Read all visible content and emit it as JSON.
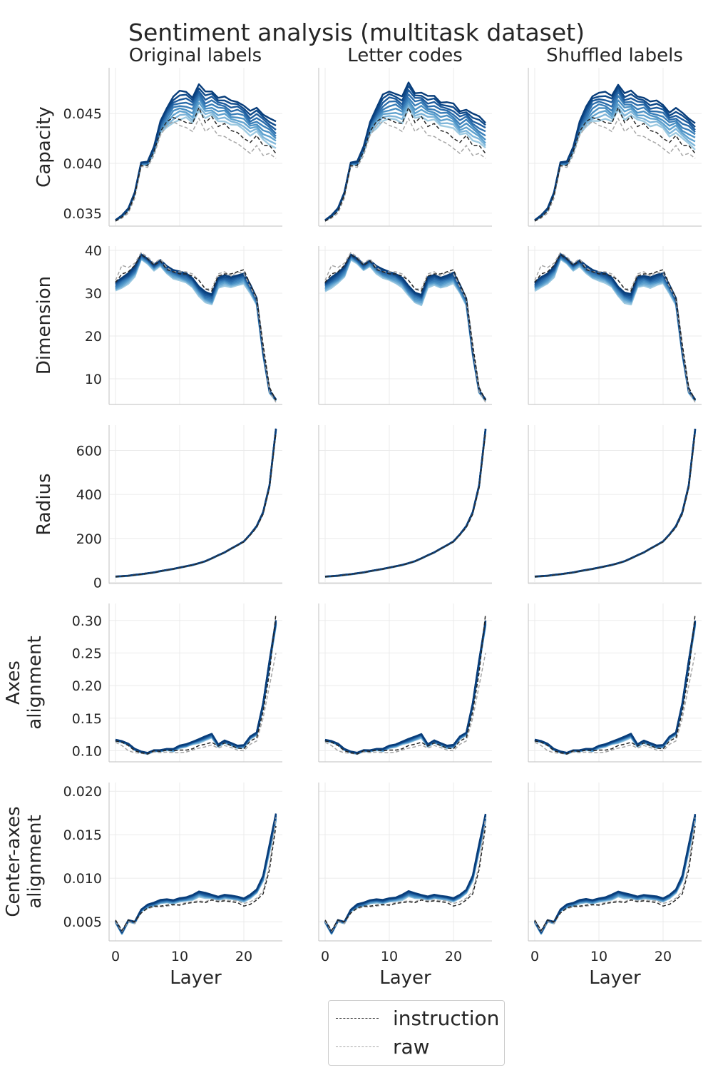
{
  "chart_data": {
    "type": "line",
    "title": "Sentiment analysis (multitask dataset)",
    "columns": [
      "Original labels",
      "Letter codes",
      "Shuffled labels"
    ],
    "xlabel": "Layer",
    "xlim": [
      -1,
      26
    ],
    "xticks": [
      0,
      10,
      20
    ],
    "grid": true,
    "legend_placement": "bottom-center",
    "legend": [
      {
        "name": "instruction",
        "color": "#262626",
        "style": "dashed"
      },
      {
        "name": "raw",
        "color": "#a6a6a6",
        "style": "dashed"
      }
    ],
    "blue_palette": [
      "#9ecae1",
      "#7fb6da",
      "#5fa2cf",
      "#4a90c4",
      "#3a7fb9",
      "#2b6dab",
      "#1d5b9c",
      "#0f4a8a",
      "#083d7a"
    ],
    "x": [
      0,
      1,
      2,
      3,
      4,
      5,
      6,
      7,
      8,
      9,
      10,
      11,
      12,
      13,
      14,
      15,
      16,
      17,
      18,
      19,
      20,
      21,
      22,
      23,
      24,
      25
    ],
    "rows": [
      {
        "ylabel": "Capacity",
        "ylim": [
          0.0337,
          0.0496
        ],
        "yticks": [
          0.035,
          0.04,
          0.045
        ],
        "ytick_labels": [
          "0.035",
          "0.040",
          "0.045"
        ],
        "instruction": [
          0.0342,
          0.0346,
          0.0352,
          0.0368,
          0.0398,
          0.0398,
          0.0412,
          0.0432,
          0.0442,
          0.0446,
          0.0444,
          0.0441,
          0.044,
          0.0456,
          0.0441,
          0.0447,
          0.0437,
          0.044,
          0.0433,
          0.0431,
          0.0425,
          0.0421,
          0.0428,
          0.0418,
          0.0418,
          0.041
        ],
        "raw": [
          0.0342,
          0.0345,
          0.035,
          0.0365,
          0.0397,
          0.0396,
          0.0408,
          0.0428,
          0.0438,
          0.0442,
          0.0438,
          0.0436,
          0.0432,
          0.0445,
          0.0432,
          0.0437,
          0.0428,
          0.0427,
          0.0423,
          0.042,
          0.0415,
          0.041,
          0.0418,
          0.0408,
          0.041,
          0.0405
        ],
        "blue_base": [
          0.0343,
          0.0347,
          0.0354,
          0.037,
          0.04,
          0.04,
          0.0414,
          0.0436,
          0.0446,
          0.0455,
          0.0458,
          0.0458,
          0.0454,
          0.0467,
          0.0458,
          0.046,
          0.0455,
          0.0455,
          0.045,
          0.045,
          0.0447,
          0.044,
          0.0443,
          0.0437,
          0.0433,
          0.0428
        ],
        "blue_spread": [
          0.0,
          0.0001,
          0.0001,
          0.0001,
          0.0001,
          0.0002,
          0.0003,
          0.0006,
          0.001,
          0.0013,
          0.0014,
          0.0013,
          0.0013,
          0.0013,
          0.0013,
          0.0012,
          0.0012,
          0.0012,
          0.0012,
          0.0012,
          0.0012,
          0.0012,
          0.0012,
          0.0013,
          0.0013,
          0.0013
        ]
      },
      {
        "ylabel": "Dimension",
        "ylim": [
          4,
          41
        ],
        "yticks": [
          10,
          20,
          30,
          40
        ],
        "ytick_labels": [
          "10",
          "20",
          "30",
          "40"
        ],
        "instruction": [
          32.5,
          34.5,
          35.0,
          36.5,
          39.0,
          38.0,
          36.5,
          37.5,
          35.5,
          35.0,
          34.5,
          34.5,
          34.0,
          33.0,
          31.0,
          30.5,
          34.0,
          34.5,
          34.5,
          35.0,
          35.5,
          32.0,
          29.0,
          18.0,
          8.0,
          5.0
        ],
        "raw": [
          33.0,
          36.5,
          36.0,
          37.0,
          39.5,
          38.5,
          37.0,
          38.0,
          36.0,
          35.0,
          35.0,
          35.0,
          34.5,
          33.0,
          31.0,
          31.0,
          34.5,
          35.0,
          34.0,
          35.0,
          34.5,
          31.5,
          28.5,
          17.0,
          7.0,
          4.5
        ],
        "blue_base": [
          31.5,
          32.5,
          33.5,
          35.0,
          38.5,
          37.5,
          36.0,
          37.0,
          35.5,
          34.5,
          34.0,
          33.5,
          32.5,
          30.5,
          29.0,
          28.5,
          32.5,
          33.0,
          32.5,
          33.0,
          33.5,
          31.0,
          28.0,
          16.0,
          7.0,
          5.0
        ],
        "blue_spread": [
          1.0,
          1.2,
          1.2,
          1.2,
          0.6,
          0.6,
          0.7,
          0.7,
          0.9,
          1.0,
          1.0,
          1.1,
          1.1,
          1.1,
          1.2,
          1.2,
          1.2,
          1.2,
          1.2,
          1.2,
          1.2,
          1.0,
          0.8,
          0.5,
          0.3,
          0.2
        ]
      },
      {
        "ylabel": "Radius",
        "ylim": [
          -5,
          715
        ],
        "yticks": [
          0,
          200,
          400,
          600
        ],
        "ytick_labels": [
          "0",
          "200",
          "400",
          "600"
        ],
        "instruction": [
          25,
          27,
          29,
          33,
          36,
          40,
          44,
          50,
          55,
          60,
          66,
          72,
          78,
          86,
          95,
          108,
          122,
          135,
          152,
          168,
          184,
          215,
          250,
          310,
          430,
          680
        ],
        "raw": [
          25,
          27,
          29,
          33,
          36,
          40,
          44,
          50,
          55,
          60,
          66,
          72,
          78,
          86,
          95,
          108,
          122,
          135,
          152,
          168,
          184,
          215,
          250,
          310,
          430,
          680
        ],
        "blue_base": [
          26,
          28,
          30,
          34,
          37,
          41,
          45,
          51,
          56,
          61,
          67,
          73,
          79,
          87,
          96,
          109,
          123,
          136,
          153,
          169,
          186,
          218,
          255,
          318,
          440,
          695
        ],
        "blue_spread": [
          1,
          1,
          1,
          1,
          1,
          1,
          1,
          1,
          1,
          1,
          1,
          1,
          1,
          1,
          1,
          1,
          1,
          1,
          1,
          1,
          1,
          1,
          2,
          2,
          3,
          4
        ]
      },
      {
        "ylabel": "Axes\nalignment",
        "ylim": [
          0.083,
          0.326
        ],
        "yticks": [
          0.1,
          0.15,
          0.2,
          0.25,
          0.3
        ],
        "ytick_labels": [
          "0.10",
          "0.15",
          "0.20",
          "0.25",
          "0.30"
        ],
        "instruction": [
          0.115,
          0.113,
          0.108,
          0.1,
          0.097,
          0.095,
          0.1,
          0.099,
          0.101,
          0.1,
          0.101,
          0.101,
          0.103,
          0.108,
          0.11,
          0.113,
          0.107,
          0.112,
          0.108,
          0.104,
          0.103,
          0.115,
          0.12,
          0.16,
          0.22,
          0.31
        ],
        "raw": [
          0.113,
          0.108,
          0.1,
          0.097,
          0.096,
          0.095,
          0.098,
          0.097,
          0.098,
          0.097,
          0.097,
          0.098,
          0.101,
          0.104,
          0.106,
          0.109,
          0.104,
          0.108,
          0.105,
          0.101,
          0.1,
          0.11,
          0.115,
          0.15,
          0.2,
          0.25
        ],
        "blue_base": [
          0.116,
          0.114,
          0.11,
          0.102,
          0.098,
          0.096,
          0.1,
          0.1,
          0.102,
          0.101,
          0.106,
          0.108,
          0.112,
          0.115,
          0.119,
          0.123,
          0.108,
          0.114,
          0.11,
          0.106,
          0.107,
          0.12,
          0.126,
          0.17,
          0.235,
          0.296
        ],
        "blue_spread": [
          0.001,
          0.001,
          0.001,
          0.001,
          0.001,
          0.001,
          0.001,
          0.001,
          0.001,
          0.002,
          0.002,
          0.002,
          0.002,
          0.003,
          0.003,
          0.003,
          0.002,
          0.002,
          0.002,
          0.002,
          0.002,
          0.002,
          0.002,
          0.003,
          0.004,
          0.004
        ]
      },
      {
        "ylabel": "Center-axes\nalignment",
        "ylim": [
          0.0028,
          0.021
        ],
        "yticks": [
          0.005,
          0.01,
          0.015,
          0.02
        ],
        "ytick_labels": [
          "0.005",
          "0.010",
          "0.015",
          "0.020"
        ],
        "instruction": [
          0.0052,
          0.004,
          0.0052,
          0.005,
          0.006,
          0.0066,
          0.0068,
          0.0068,
          0.0069,
          0.007,
          0.0069,
          0.0071,
          0.0072,
          0.0073,
          0.0072,
          0.0075,
          0.0073,
          0.0074,
          0.0073,
          0.0072,
          0.0068,
          0.007,
          0.0075,
          0.0082,
          0.011,
          0.016
        ],
        "raw": [
          0.005,
          0.0039,
          0.005,
          0.0048,
          0.006,
          0.0065,
          0.0067,
          0.0067,
          0.0068,
          0.0069,
          0.007,
          0.0072,
          0.0073,
          0.0074,
          0.0073,
          0.0076,
          0.0074,
          0.0075,
          0.0074,
          0.0074,
          0.0071,
          0.0073,
          0.0077,
          0.0085,
          0.0115,
          0.017
        ],
        "blue_base": [
          0.005,
          0.0037,
          0.0051,
          0.0049,
          0.0063,
          0.0068,
          0.007,
          0.0073,
          0.0074,
          0.0073,
          0.0075,
          0.0076,
          0.0078,
          0.0082,
          0.008,
          0.0079,
          0.0077,
          0.0079,
          0.0078,
          0.0077,
          0.0075,
          0.0079,
          0.0085,
          0.01,
          0.0135,
          0.017
        ],
        "blue_spread": [
          0.0001,
          0.0001,
          0.0001,
          0.0001,
          0.0001,
          0.0002,
          0.0002,
          0.0002,
          0.0002,
          0.0002,
          0.0002,
          0.0002,
          0.0003,
          0.0003,
          0.0003,
          0.0002,
          0.0002,
          0.0002,
          0.0002,
          0.0002,
          0.0002,
          0.0002,
          0.0002,
          0.0003,
          0.0004,
          0.0004
        ]
      }
    ]
  }
}
